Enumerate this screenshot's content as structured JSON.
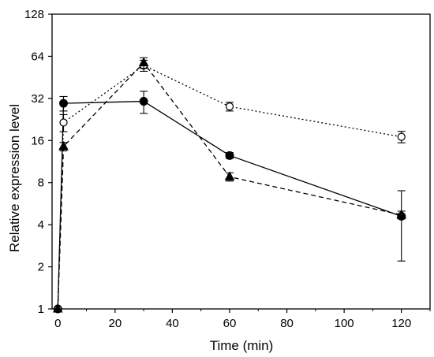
{
  "chart_data": {
    "type": "line",
    "xlabel": "Time (min)",
    "ylabel": "Relative expression level",
    "xlim": [
      -2,
      130
    ],
    "ylim": [
      1,
      128
    ],
    "yscale": "log2",
    "x_ticks": [
      0,
      20,
      40,
      60,
      80,
      100,
      120
    ],
    "y_ticks": [
      1,
      2,
      4,
      8,
      16,
      32,
      64,
      128
    ],
    "grid": false,
    "legend": "none",
    "series": [
      {
        "marker": "filled-circle",
        "line": "solid",
        "color": "#000000",
        "x": [
          0,
          2,
          30,
          60,
          120
        ],
        "y": [
          1,
          29.5,
          30.5,
          12.5,
          4.6
        ],
        "err": [
          0,
          3.5,
          5.5,
          0.6,
          2.4
        ]
      },
      {
        "marker": "open-circle",
        "line": "dotted",
        "color": "#000000",
        "x": [
          0,
          2,
          30,
          60,
          120
        ],
        "y": [
          1,
          21.5,
          55,
          28,
          17
        ],
        "err": [
          0,
          3.0,
          5.0,
          2.0,
          1.6
        ]
      },
      {
        "marker": "filled-triangle",
        "line": "dashed",
        "color": "#000000",
        "x": [
          0,
          2,
          30,
          60,
          120
        ],
        "y": [
          1,
          14.5,
          57.5,
          8.8,
          4.7
        ],
        "err": [
          0,
          1.0,
          5.0,
          0.6,
          0.3
        ]
      }
    ]
  }
}
